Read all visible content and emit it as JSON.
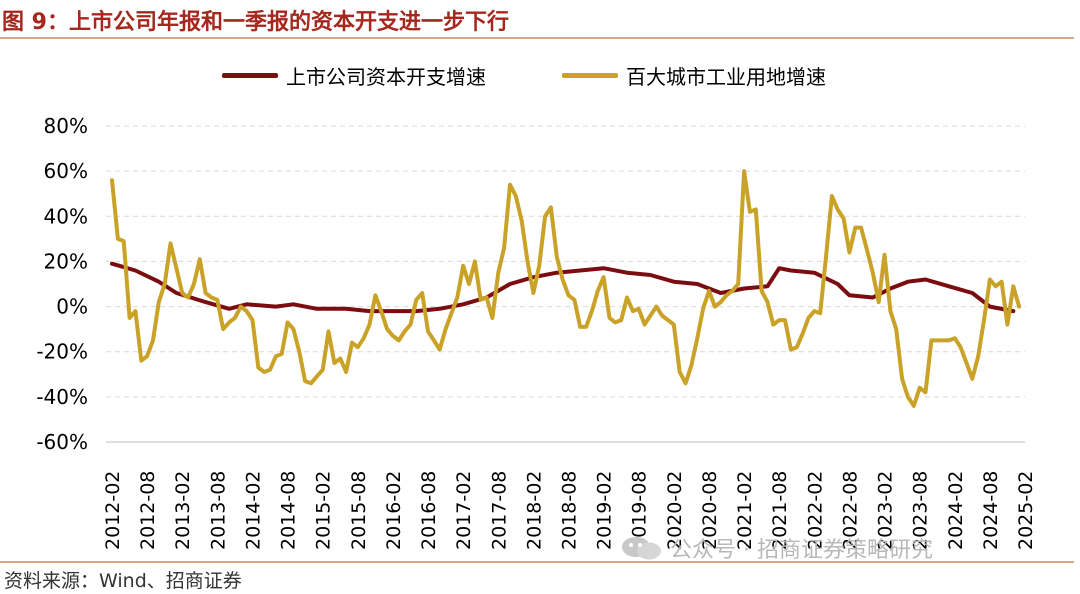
{
  "figure": {
    "title": "图 9：上市公司年报和一季报的资本开支进一步下行",
    "source": "资料来源：Wind、招商证券",
    "watermark": "公众号 · 招商证券策略研究"
  },
  "chart_data": {
    "type": "line",
    "title": "图 9：上市公司年报和一季报的资本开支进一步下行",
    "xlabel": "",
    "ylabel": "",
    "ylim": [
      -60,
      80
    ],
    "yticks": [
      "80%",
      "60%",
      "40%",
      "20%",
      "0%",
      "-20%",
      "-40%",
      "-60%"
    ],
    "yticks_values": [
      80,
      60,
      40,
      20,
      0,
      -20,
      -40,
      -60
    ],
    "x_range": [
      "2012-02",
      "2025-02"
    ],
    "xticks": [
      "2012-02",
      "2012-08",
      "2013-02",
      "2013-08",
      "2014-02",
      "2014-08",
      "2015-02",
      "2015-08",
      "2016-02",
      "2016-08",
      "2017-02",
      "2017-08",
      "2018-02",
      "2018-08",
      "2019-02",
      "2019-08",
      "2020-02",
      "2020-08",
      "2021-02",
      "2021-08",
      "2022-02",
      "2022-08",
      "2023-02",
      "2023-08",
      "2024-02",
      "2024-08",
      "2025-02"
    ],
    "grid": "horizontal-dashed",
    "legend_position": "top",
    "series": [
      {
        "name": "上市公司资本开支增速",
        "color": "#7b0c10",
        "points": [
          [
            "2012-02",
            19
          ],
          [
            "2012-06",
            16
          ],
          [
            "2012-10",
            11
          ],
          [
            "2013-01",
            6
          ],
          [
            "2013-06",
            2
          ],
          [
            "2013-10",
            -1
          ],
          [
            "2014-01",
            1
          ],
          [
            "2014-06",
            0
          ],
          [
            "2014-09",
            1
          ],
          [
            "2015-01",
            -1
          ],
          [
            "2015-06",
            -1
          ],
          [
            "2015-10",
            -2
          ],
          [
            "2016-03",
            -2
          ],
          [
            "2016-06",
            -2
          ],
          [
            "2016-10",
            -1
          ],
          [
            "2017-02",
            1
          ],
          [
            "2017-06",
            4
          ],
          [
            "2017-10",
            10
          ],
          [
            "2018-02",
            13
          ],
          [
            "2018-06",
            15
          ],
          [
            "2018-10",
            16
          ],
          [
            "2019-02",
            17
          ],
          [
            "2019-06",
            15
          ],
          [
            "2019-10",
            14
          ],
          [
            "2020-02",
            11
          ],
          [
            "2020-06",
            10
          ],
          [
            "2020-10",
            6
          ],
          [
            "2021-02",
            8
          ],
          [
            "2021-06",
            9
          ],
          [
            "2021-08",
            17
          ],
          [
            "2021-10",
            16
          ],
          [
            "2022-02",
            15
          ],
          [
            "2022-06",
            10
          ],
          [
            "2022-08",
            5
          ],
          [
            "2022-12",
            4
          ],
          [
            "2023-03",
            8
          ],
          [
            "2023-06",
            11
          ],
          [
            "2023-09",
            12
          ],
          [
            "2024-01",
            9
          ],
          [
            "2024-05",
            6
          ],
          [
            "2024-08",
            0
          ],
          [
            "2024-12",
            -2
          ]
        ]
      },
      {
        "name": "百大城市工业用地增速",
        "color": "#c9a227",
        "points": [
          [
            "2012-02",
            56
          ],
          [
            "2012-03",
            30
          ],
          [
            "2012-04",
            29
          ],
          [
            "2012-05",
            -5
          ],
          [
            "2012-06",
            -2
          ],
          [
            "2012-07",
            -24
          ],
          [
            "2012-08",
            -22
          ],
          [
            "2012-09",
            -15
          ],
          [
            "2012-10",
            2
          ],
          [
            "2012-11",
            10
          ],
          [
            "2012-12",
            28
          ],
          [
            "2013-01",
            17
          ],
          [
            "2013-02",
            6
          ],
          [
            "2013-03",
            4
          ],
          [
            "2013-04",
            10
          ],
          [
            "2013-05",
            21
          ],
          [
            "2013-06",
            6
          ],
          [
            "2013-07",
            4
          ],
          [
            "2013-08",
            3
          ],
          [
            "2013-09",
            -10
          ],
          [
            "2013-10",
            -7
          ],
          [
            "2013-11",
            -5
          ],
          [
            "2013-12",
            0
          ],
          [
            "2014-01",
            -2
          ],
          [
            "2014-02",
            -6
          ],
          [
            "2014-03",
            -27
          ],
          [
            "2014-04",
            -29
          ],
          [
            "2014-05",
            -28
          ],
          [
            "2014-06",
            -22
          ],
          [
            "2014-07",
            -21
          ],
          [
            "2014-08",
            -7
          ],
          [
            "2014-09",
            -10
          ],
          [
            "2014-10",
            -20
          ],
          [
            "2014-11",
            -33
          ],
          [
            "2014-12",
            -34
          ],
          [
            "2015-01",
            -31
          ],
          [
            "2015-02",
            -28
          ],
          [
            "2015-03",
            -11
          ],
          [
            "2015-04",
            -25
          ],
          [
            "2015-05",
            -23
          ],
          [
            "2015-06",
            -29
          ],
          [
            "2015-07",
            -16
          ],
          [
            "2015-08",
            -18
          ],
          [
            "2015-09",
            -14
          ],
          [
            "2015-10",
            -8
          ],
          [
            "2015-11",
            5
          ],
          [
            "2015-12",
            -2
          ],
          [
            "2016-01",
            -10
          ],
          [
            "2016-02",
            -13
          ],
          [
            "2016-03",
            -15
          ],
          [
            "2016-04",
            -11
          ],
          [
            "2016-05",
            -8
          ],
          [
            "2016-06",
            3
          ],
          [
            "2016-07",
            6
          ],
          [
            "2016-08",
            -11
          ],
          [
            "2016-09",
            -15
          ],
          [
            "2016-10",
            -19
          ],
          [
            "2016-11",
            -10
          ],
          [
            "2016-12",
            -3
          ],
          [
            "2017-01",
            4
          ],
          [
            "2017-02",
            18
          ],
          [
            "2017-03",
            10
          ],
          [
            "2017-04",
            20
          ],
          [
            "2017-05",
            3
          ],
          [
            "2017-06",
            4
          ],
          [
            "2017-07",
            -5
          ],
          [
            "2017-08",
            15
          ],
          [
            "2017-09",
            26
          ],
          [
            "2017-10",
            54
          ],
          [
            "2017-11",
            49
          ],
          [
            "2017-12",
            38
          ],
          [
            "2018-01",
            20
          ],
          [
            "2018-02",
            6
          ],
          [
            "2018-03",
            18
          ],
          [
            "2018-04",
            40
          ],
          [
            "2018-05",
            44
          ],
          [
            "2018-06",
            22
          ],
          [
            "2018-07",
            12
          ],
          [
            "2018-08",
            5
          ],
          [
            "2018-09",
            3
          ],
          [
            "2018-10",
            -9
          ],
          [
            "2018-11",
            -9
          ],
          [
            "2018-12",
            -2
          ],
          [
            "2019-01",
            7
          ],
          [
            "2019-02",
            13
          ],
          [
            "2019-03",
            -5
          ],
          [
            "2019-04",
            -7
          ],
          [
            "2019-05",
            -6
          ],
          [
            "2019-06",
            4
          ],
          [
            "2019-07",
            -2
          ],
          [
            "2019-08",
            -1
          ],
          [
            "2019-09",
            -8
          ],
          [
            "2019-10",
            -4
          ],
          [
            "2019-11",
            0
          ],
          [
            "2019-12",
            -4
          ],
          [
            "2020-01",
            -6
          ],
          [
            "2020-02",
            -8
          ],
          [
            "2020-03",
            -29
          ],
          [
            "2020-04",
            -34
          ],
          [
            "2020-05",
            -26
          ],
          [
            "2020-06",
            -14
          ],
          [
            "2020-07",
            -1
          ],
          [
            "2020-08",
            7
          ],
          [
            "2020-09",
            0
          ],
          [
            "2020-10",
            2
          ],
          [
            "2020-11",
            5
          ],
          [
            "2020-12",
            7
          ],
          [
            "2021-01",
            10
          ],
          [
            "2021-02",
            60
          ],
          [
            "2021-03",
            42
          ],
          [
            "2021-04",
            43
          ],
          [
            "2021-05",
            7
          ],
          [
            "2021-06",
            2
          ],
          [
            "2021-07",
            -8
          ],
          [
            "2021-08",
            -6
          ],
          [
            "2021-09",
            -6
          ],
          [
            "2021-10",
            -19
          ],
          [
            "2021-11",
            -18
          ],
          [
            "2021-12",
            -12
          ],
          [
            "2022-01",
            -5
          ],
          [
            "2022-02",
            -2
          ],
          [
            "2022-03",
            -3
          ],
          [
            "2022-04",
            22
          ],
          [
            "2022-05",
            49
          ],
          [
            "2022-06",
            43
          ],
          [
            "2022-07",
            39
          ],
          [
            "2022-08",
            24
          ],
          [
            "2022-09",
            35
          ],
          [
            "2022-10",
            35
          ],
          [
            "2022-11",
            25
          ],
          [
            "2022-12",
            15
          ],
          [
            "2023-01",
            2
          ],
          [
            "2023-02",
            23
          ],
          [
            "2023-03",
            -2
          ],
          [
            "2023-04",
            -10
          ],
          [
            "2023-05",
            -32
          ],
          [
            "2023-06",
            -40
          ],
          [
            "2023-07",
            -44
          ],
          [
            "2023-08",
            -36
          ],
          [
            "2023-09",
            -38
          ],
          [
            "2023-10",
            -15
          ],
          [
            "2023-11",
            -15
          ],
          [
            "2023-12",
            -15
          ],
          [
            "2024-01",
            -15
          ],
          [
            "2024-02",
            -14
          ],
          [
            "2024-03",
            -18
          ],
          [
            "2024-04",
            -25
          ],
          [
            "2024-05",
            -32
          ],
          [
            "2024-06",
            -22
          ],
          [
            "2024-07",
            -6
          ],
          [
            "2024-08",
            12
          ],
          [
            "2024-09",
            9
          ],
          [
            "2024-10",
            11
          ],
          [
            "2024-11",
            -8
          ],
          [
            "2024-12",
            9
          ],
          [
            "2025-01",
            0
          ]
        ]
      }
    ]
  }
}
